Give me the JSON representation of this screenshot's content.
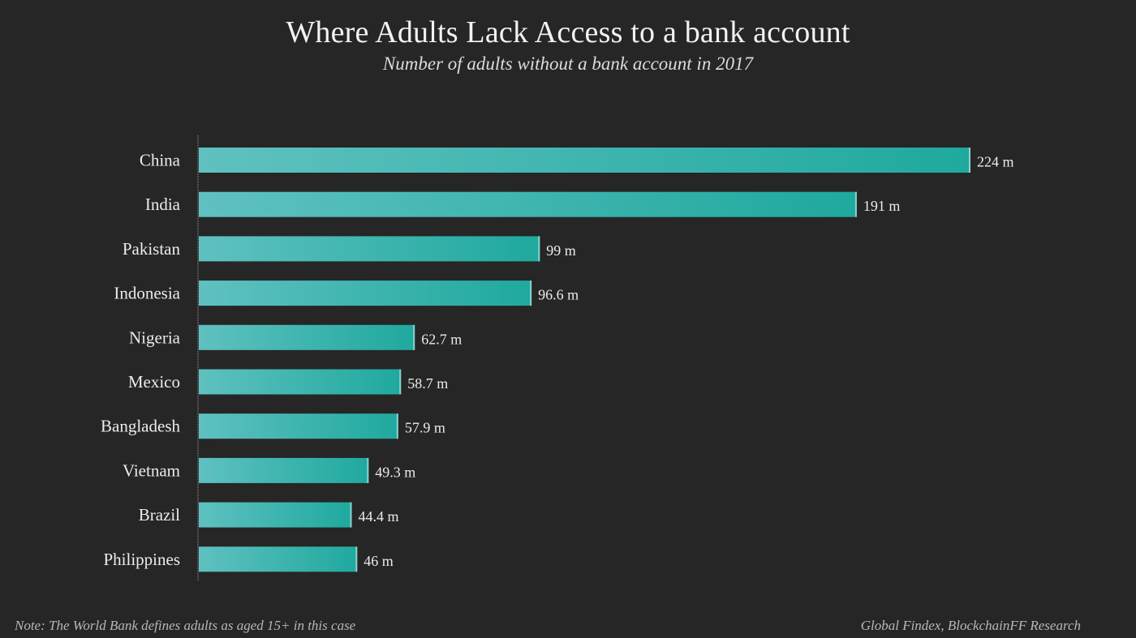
{
  "chart_data": {
    "type": "bar",
    "orientation": "horizontal",
    "title": "Where Adults Lack Access to a bank account",
    "subtitle": "Number of adults without a bank account in 2017",
    "categories": [
      "China",
      "India",
      "Pakistan",
      "Indonesia",
      "Nigeria",
      "Mexico",
      "Bangladesh",
      "Vietnam",
      "Brazil",
      "Philippines"
    ],
    "values": [
      224,
      191,
      99,
      96.6,
      62.7,
      58.7,
      57.9,
      49.3,
      44.4,
      46
    ],
    "data_labels": [
      "224 m",
      "191 m",
      "99 m",
      "96.6 m",
      "62.7 m",
      "58.7 m",
      "57.9 m",
      "49.3 m",
      "44.4 m",
      "46 m"
    ],
    "xlim": [
      0,
      224
    ],
    "grid": false,
    "bar_color_light": "#5fc1c0",
    "bar_color_dark": "#1fa99e"
  },
  "footer": {
    "note": "Note: The World Bank defines adults as aged 15+ in this case",
    "source": "Global Findex, BlockchainFF Research"
  }
}
